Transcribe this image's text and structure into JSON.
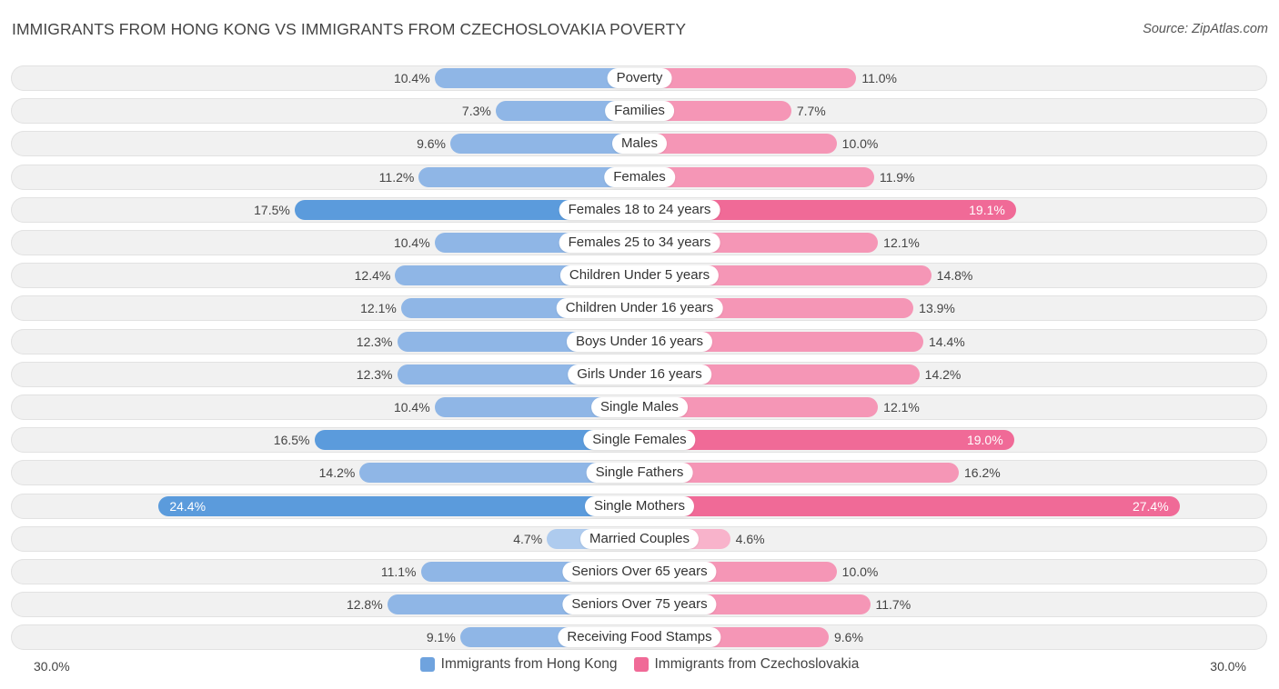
{
  "header": {
    "title": "IMMIGRANTS FROM HONG KONG VS IMMIGRANTS FROM CZECHOSLOVAKIA POVERTY",
    "source": "Source: ZipAtlas.com"
  },
  "colors": {
    "left_bar": "#8fb6e6",
    "left_bar_strong": "#5b9bdc",
    "right_bar": "#f596b6",
    "right_bar_strong": "#f06a97"
  },
  "legend": {
    "left_label": "Immigrants from Hong Kong",
    "right_label": "Immigrants from Czechoslovakia",
    "left_color": "#6fa3de",
    "right_color": "#f06a97"
  },
  "axis": {
    "left_label": "30.0%",
    "right_label": "30.0%"
  },
  "chart_data": {
    "type": "bar",
    "orientation": "horizontal-diverging",
    "title": "IMMIGRANTS FROM HONG KONG VS IMMIGRANTS FROM CZECHOSLOVAKIA POVERTY",
    "xlim": [
      0,
      30
    ],
    "categories": [
      "Poverty",
      "Families",
      "Males",
      "Females",
      "Females 18 to 24 years",
      "Females 25 to 34 years",
      "Children Under 5 years",
      "Children Under 16 years",
      "Boys Under 16 years",
      "Girls Under 16 years",
      "Single Males",
      "Single Females",
      "Single Fathers",
      "Single Mothers",
      "Married Couples",
      "Seniors Over 65 years",
      "Seniors Over 75 years",
      "Receiving Food Stamps"
    ],
    "series": [
      {
        "name": "Immigrants from Hong Kong",
        "values": [
          10.4,
          7.3,
          9.6,
          11.2,
          17.5,
          10.4,
          12.4,
          12.1,
          12.3,
          12.3,
          10.4,
          16.5,
          14.2,
          24.4,
          4.7,
          11.1,
          12.8,
          9.1
        ],
        "labels": [
          "10.4%",
          "7.3%",
          "9.6%",
          "11.2%",
          "17.5%",
          "10.4%",
          "12.4%",
          "12.1%",
          "12.3%",
          "12.3%",
          "10.4%",
          "16.5%",
          "14.2%",
          "24.4%",
          "4.7%",
          "11.1%",
          "12.8%",
          "9.1%"
        ]
      },
      {
        "name": "Immigrants from Czechoslovakia",
        "values": [
          11.0,
          7.7,
          10.0,
          11.9,
          19.1,
          12.1,
          14.8,
          13.9,
          14.4,
          14.2,
          12.1,
          19.0,
          16.2,
          27.4,
          4.6,
          10.0,
          11.7,
          9.6
        ],
        "labels": [
          "11.0%",
          "7.7%",
          "10.0%",
          "11.9%",
          "19.1%",
          "12.1%",
          "14.8%",
          "13.9%",
          "14.4%",
          "14.2%",
          "12.1%",
          "19.0%",
          "16.2%",
          "27.4%",
          "4.6%",
          "10.0%",
          "11.7%",
          "9.6%"
        ]
      }
    ]
  }
}
